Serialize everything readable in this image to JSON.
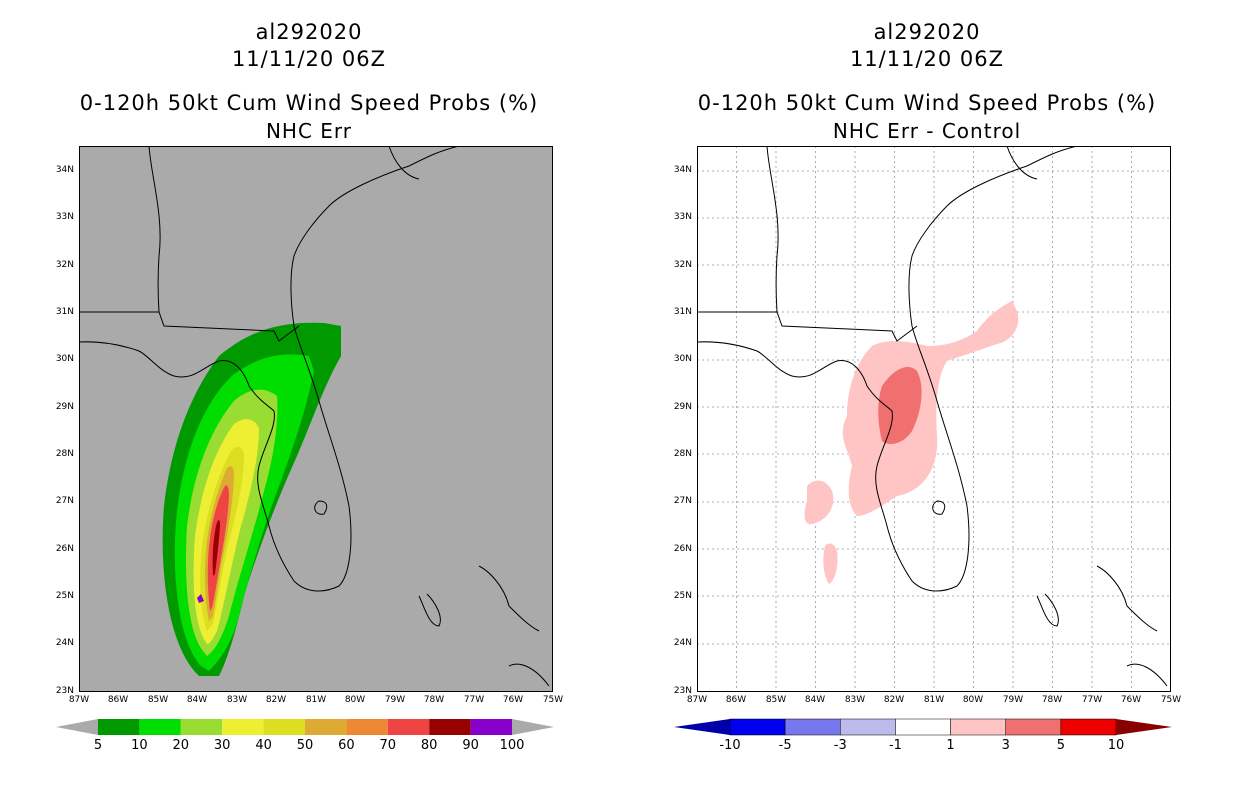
{
  "left": {
    "storm_id": "al292020",
    "datetime": "11/11/20 06Z",
    "product": "0-120h 50kt Cum Wind Speed Probs (%)",
    "subtitle": "NHC Err",
    "colorbar": [
      {
        "color": "#009900",
        "label": "5"
      },
      {
        "color": "#00dd00",
        "label": "10"
      },
      {
        "color": "#99dd33",
        "label": "20"
      },
      {
        "color": "#eeee33",
        "label": "30"
      },
      {
        "color": "#dddd22",
        "label": "40"
      },
      {
        "color": "#ddaa33",
        "label": "50"
      },
      {
        "color": "#ee8833",
        "label": "60"
      },
      {
        "color": "#ee4444",
        "label": "70"
      },
      {
        "color": "#990000",
        "label": "80"
      },
      {
        "color": "#8800cc",
        "label": "90"
      },
      {
        "color": "#8800cc",
        "label": "100"
      }
    ]
  },
  "right": {
    "storm_id": "al292020",
    "datetime": "11/11/20 06Z",
    "product": "0-120h 50kt Cum Wind Speed Probs (%)",
    "subtitle": "NHC Err - Control",
    "colorbar": [
      {
        "color": "#0000aa",
        "label": "-10"
      },
      {
        "color": "#0000ee",
        "label": "-5"
      },
      {
        "color": "#7777ee",
        "label": "-3"
      },
      {
        "color": "#bbbbee",
        "label": "-1"
      },
      {
        "color": "#ffffff",
        "label": "1"
      },
      {
        "color": "#ffc4c4",
        "label": "3"
      },
      {
        "color": "#f07070",
        "label": "5"
      },
      {
        "color": "#ee0000",
        "label": "10"
      },
      {
        "color": "#880000",
        "label": ""
      }
    ]
  },
  "axes": {
    "lat_labels": [
      "34N",
      "33N",
      "32N",
      "31N",
      "30N",
      "29N",
      "28N",
      "27N",
      "26N",
      "25N",
      "24N",
      "23N"
    ],
    "lon_labels": [
      "87W",
      "86W",
      "85W",
      "84W",
      "83W",
      "82W",
      "81W",
      "80W",
      "79W",
      "78W",
      "77W",
      "76W",
      "75W"
    ],
    "lat_range": [
      23,
      34.5
    ],
    "lon_range": [
      -87,
      -75
    ]
  },
  "colors": {
    "left_background": "#aaaaaa",
    "right_background": "#ffffff"
  }
}
